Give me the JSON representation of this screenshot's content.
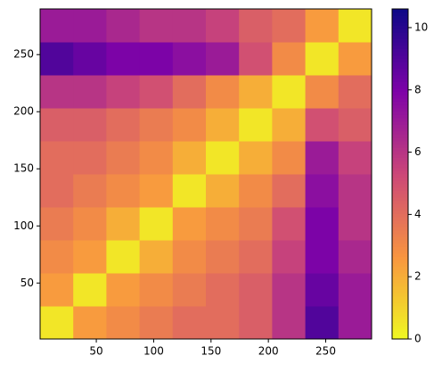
{
  "chart_data": {
    "type": "heatmap",
    "xlim": [
      1,
      290
    ],
    "ylim": [
      1,
      290
    ],
    "xticks": [
      50,
      100,
      150,
      200,
      250
    ],
    "yticks": [
      50,
      100,
      150,
      200,
      250
    ],
    "colormap": "plasma_r",
    "zlim": [
      0,
      10.6
    ],
    "zticks": [
      0,
      2,
      4,
      6,
      8,
      10
    ],
    "values": [
      [
        0.5,
        2.5,
        3,
        3.5,
        4,
        4,
        4.5,
        6,
        9,
        7
      ],
      [
        2.5,
        0.5,
        2.5,
        3,
        3.5,
        4,
        4.5,
        6,
        8.5,
        7
      ],
      [
        3,
        2.5,
        0.5,
        2,
        3,
        3.5,
        4,
        5.5,
        8,
        6.5
      ],
      [
        3.5,
        3,
        2,
        0.5,
        2.5,
        3,
        3.5,
        5,
        8,
        6
      ],
      [
        4,
        3.5,
        3,
        2.5,
        0.5,
        2,
        3,
        4,
        7.5,
        6
      ],
      [
        4,
        4,
        3.5,
        3,
        2,
        0.5,
        2,
        3,
        7,
        5.5
      ],
      [
        4.5,
        4.5,
        4,
        3.5,
        3,
        2,
        0.5,
        2,
        5,
        4.5
      ],
      [
        6,
        6,
        5.5,
        5,
        4,
        3,
        2,
        0.5,
        3,
        4
      ],
      [
        9,
        8.5,
        8,
        8,
        7.5,
        7,
        5,
        3,
        0.5,
        2.5
      ],
      [
        7,
        7,
        6.5,
        6,
        6,
        5.5,
        4.5,
        4,
        2.5,
        0.5
      ]
    ]
  }
}
